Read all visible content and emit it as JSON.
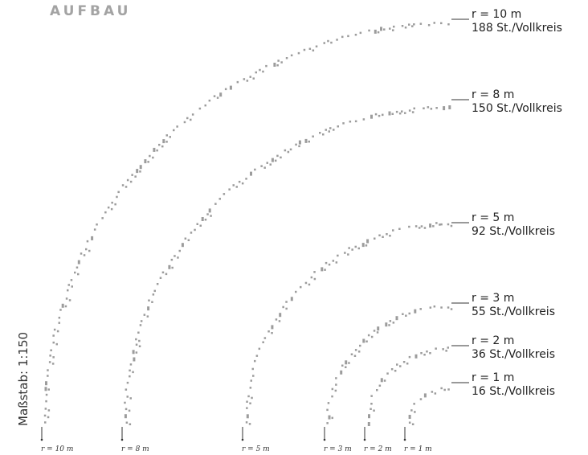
{
  "header": {
    "title": "AUFBAU"
  },
  "scale_label": "Maßstab: 1:150",
  "rings": [
    {
      "radius_label": "r = 10 m",
      "count_label": "188 St./Vollkreis",
      "axis_label": "r = 10 m",
      "stones": 188
    },
    {
      "radius_label": "r = 8 m",
      "count_label": "150 St./Vollkreis",
      "axis_label": "r = 8 m",
      "stones": 150
    },
    {
      "radius_label": "r = 5 m",
      "count_label": "92 St./Vollkreis",
      "axis_label": "r = 5 m",
      "stones": 92
    },
    {
      "radius_label": "r = 3 m",
      "count_label": "55 St./Vollkreis",
      "axis_label": "r = 3 m",
      "stones": 55
    },
    {
      "radius_label": "r = 2 m",
      "count_label": "36 St./Vollkreis",
      "axis_label": "r = 2 m",
      "stones": 36
    },
    {
      "radius_label": "r = 1 m",
      "count_label": "16 St./Vollkreis",
      "axis_label": "r = 1 m",
      "stones": 16
    }
  ],
  "colors": {
    "stone": "#9c9c9c",
    "title": "#a3a3a3",
    "text": "#222222"
  }
}
